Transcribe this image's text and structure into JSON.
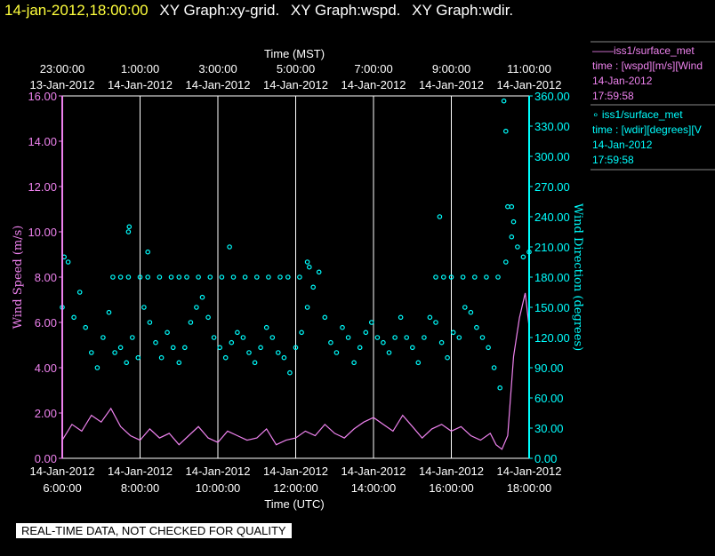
{
  "header": {
    "datetime": "14-jan-2012,18:00:00",
    "graphs": [
      "XY Graph:xy-grid.",
      "XY Graph:wspd.",
      "XY Graph:wdir."
    ]
  },
  "colors": {
    "wspd": "#ee82ee",
    "wdir": "#00ffff",
    "header_date": "#ffff3c",
    "grid": "#ffffff",
    "background": "#000000"
  },
  "legend": [
    {
      "marker": "line",
      "lines": [
        "——iss1/surface_met",
        "time : [wspd][m/s][Wind",
        "14-Jan-2012",
        "17:59:58"
      ]
    },
    {
      "marker": "circle",
      "lines": [
        "∘ iss1/surface_met",
        "time : [wdir][degrees][V",
        "14-Jan-2012",
        "17:59:58"
      ]
    }
  ],
  "footer_note": "REAL-TIME DATA, NOT CHECKED FOR QUALITY",
  "chart_data": {
    "type": "scatter",
    "top_axis": {
      "label": "Time (MST)",
      "ticks": [
        {
          "time": "23:00:00",
          "date": "13-Jan-2012"
        },
        {
          "time": "1:00:00",
          "date": "14-Jan-2012"
        },
        {
          "time": "3:00:00",
          "date": "14-Jan-2012"
        },
        {
          "time": "5:00:00",
          "date": "14-Jan-2012"
        },
        {
          "time": "7:00:00",
          "date": "14-Jan-2012"
        },
        {
          "time": "9:00:00",
          "date": "14-Jan-2012"
        },
        {
          "time": "11:00:00",
          "date": "14-Jan-2012"
        }
      ]
    },
    "x_axis": {
      "label": "Time (UTC)",
      "range": [
        "14-Jan-2012 6:00:00",
        "14-Jan-2012 18:00:00"
      ],
      "ticks": [
        {
          "date": "14-Jan-2012",
          "time": "6:00:00"
        },
        {
          "date": "14-Jan-2012",
          "time": "8:00:00"
        },
        {
          "date": "14-Jan-2012",
          "time": "10:00:00"
        },
        {
          "date": "14-Jan-2012",
          "time": "12:00:00"
        },
        {
          "date": "14-Jan-2012",
          "time": "14:00:00"
        },
        {
          "date": "14-Jan-2012",
          "time": "16:00:00"
        },
        {
          "date": "14-Jan-2012",
          "time": "18:00:00"
        }
      ]
    },
    "y_left": {
      "label": "Wind Speed (m/s)",
      "range": [
        0,
        16
      ],
      "ticks": [
        "0.00",
        "2.00",
        "4.00",
        "6.00",
        "8.00",
        "10.00",
        "12.00",
        "14.00",
        "16.00"
      ]
    },
    "y_right": {
      "label": "Wind Direction (degrees)",
      "range": [
        0,
        360
      ],
      "ticks": [
        "0.00",
        "30.00",
        "60.00",
        "90.00",
        "120.00",
        "150.00",
        "180.00",
        "210.00",
        "240.00",
        "270.00",
        "300.00",
        "330.00",
        "360.00"
      ]
    },
    "grid": "vertical",
    "series": [
      {
        "name": "wspd",
        "style": "line",
        "axis": "left",
        "x_hours_utc": [
          6.0,
          6.25,
          6.5,
          6.75,
          7.0,
          7.25,
          7.5,
          7.75,
          8.0,
          8.25,
          8.5,
          8.75,
          9.0,
          9.25,
          9.5,
          9.75,
          10.0,
          10.25,
          10.5,
          10.75,
          11.0,
          11.25,
          11.5,
          11.75,
          12.0,
          12.25,
          12.5,
          12.75,
          13.0,
          13.25,
          13.5,
          13.75,
          14.0,
          14.25,
          14.5,
          14.75,
          15.0,
          15.25,
          15.5,
          15.75,
          16.0,
          16.25,
          16.5,
          16.75,
          17.0,
          17.15,
          17.3,
          17.45,
          17.6,
          17.75,
          17.9,
          18.0
        ],
        "values": [
          0.8,
          1.5,
          1.2,
          1.9,
          1.6,
          2.2,
          1.4,
          1.0,
          0.8,
          1.3,
          0.9,
          1.1,
          0.6,
          1.0,
          1.4,
          0.9,
          0.7,
          1.2,
          1.0,
          0.8,
          0.9,
          1.3,
          0.6,
          0.8,
          0.9,
          1.2,
          1.0,
          1.5,
          1.1,
          0.9,
          1.3,
          1.6,
          1.8,
          1.5,
          1.2,
          1.9,
          1.4,
          0.9,
          1.3,
          1.5,
          1.2,
          1.4,
          1.0,
          0.8,
          1.1,
          0.6,
          0.4,
          1.0,
          4.5,
          6.2,
          7.3,
          5.8
        ]
      },
      {
        "name": "wdir",
        "style": "circle",
        "axis": "right",
        "x_hours_utc": [
          6.0,
          6.15,
          6.3,
          6.45,
          6.6,
          6.75,
          6.9,
          7.05,
          7.2,
          7.35,
          7.5,
          7.65,
          7.8,
          7.95,
          8.1,
          8.25,
          8.4,
          8.55,
          8.7,
          8.85,
          9.0,
          9.15,
          9.3,
          9.45,
          9.6,
          9.75,
          9.9,
          10.05,
          10.2,
          10.35,
          10.5,
          10.65,
          10.8,
          10.95,
          11.1,
          11.25,
          11.4,
          11.55,
          11.7,
          11.85,
          12.0,
          12.15,
          12.3,
          12.45,
          12.6,
          12.75,
          12.9,
          13.05,
          13.2,
          13.35,
          13.5,
          13.65,
          13.8,
          13.95,
          14.1,
          14.25,
          14.4,
          14.55,
          14.7,
          14.85,
          15.0,
          15.15,
          15.3,
          15.45,
          15.6,
          15.75,
          15.9,
          16.05,
          16.2,
          16.35,
          16.5,
          16.65,
          16.8,
          16.95,
          17.1,
          17.25,
          17.4,
          17.55,
          17.7,
          17.85,
          18.0
        ],
        "values": [
          150,
          195,
          140,
          165,
          130,
          105,
          90,
          120,
          145,
          105,
          110,
          95,
          120,
          100,
          150,
          135,
          115,
          100,
          125,
          110,
          95,
          110,
          135,
          150,
          160,
          140,
          120,
          110,
          100,
          115,
          125,
          120,
          105,
          95,
          110,
          130,
          120,
          105,
          100,
          85,
          110,
          125,
          150,
          170,
          185,
          140,
          115,
          105,
          130,
          120,
          95,
          110,
          125,
          135,
          120,
          115,
          105,
          120,
          140,
          120,
          110,
          95,
          120,
          140,
          135,
          115,
          100,
          125,
          120,
          150,
          145,
          130,
          120,
          110,
          90,
          70,
          195,
          220,
          210,
          200,
          205
        ]
      },
      {
        "name": "wdir-plateau",
        "style": "circle",
        "axis": "right",
        "x_hours_utc": [
          7.3,
          7.5,
          7.7,
          8.0,
          8.2,
          8.5,
          8.8,
          9.0,
          9.2,
          9.5,
          9.8,
          10.1,
          10.4,
          10.7,
          11.0,
          11.3,
          11.6,
          11.8,
          12.1,
          15.6,
          15.8,
          16.0,
          16.3,
          16.6,
          16.9,
          17.2
        ],
        "values": [
          180,
          180,
          180,
          180,
          180,
          180,
          180,
          180,
          180,
          180,
          180,
          180,
          180,
          180,
          180,
          180,
          180,
          180,
          180,
          180,
          180,
          180,
          180,
          180,
          180,
          180
        ]
      },
      {
        "name": "wdir-outliers",
        "style": "circle",
        "axis": "right",
        "x_hours_utc": [
          6.05,
          7.7,
          7.72,
          8.2,
          10.3,
          12.3,
          12.35,
          15.7,
          17.35,
          17.4,
          17.45,
          17.55,
          17.6
        ],
        "values": [
          200,
          225,
          230,
          205,
          210,
          195,
          190,
          240,
          355,
          325,
          250,
          250,
          235
        ]
      }
    ]
  }
}
